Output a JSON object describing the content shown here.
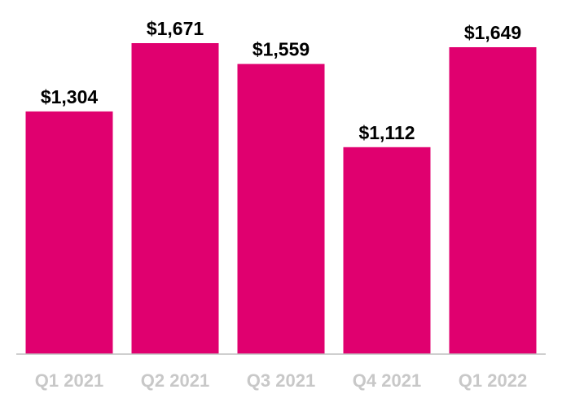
{
  "chart_data": {
    "type": "bar",
    "title": "",
    "xlabel": "",
    "ylabel": "",
    "categories": [
      "Q1 2021",
      "Q2 2021",
      "Q3 2021",
      "Q4 2021",
      "Q1 2022"
    ],
    "values": [
      1304,
      1671,
      1559,
      1112,
      1649
    ],
    "data_labels": [
      "$1,304",
      "$1,671",
      "$1,559",
      "$1,112",
      "$1,649"
    ],
    "ylim": [
      0,
      1671
    ],
    "grid": false,
    "legend": "none",
    "colors": {
      "bar": "#e0006f",
      "axis": "#bfbfbf",
      "tick_label": "#c8c8c8",
      "value_label": "#000000"
    }
  }
}
